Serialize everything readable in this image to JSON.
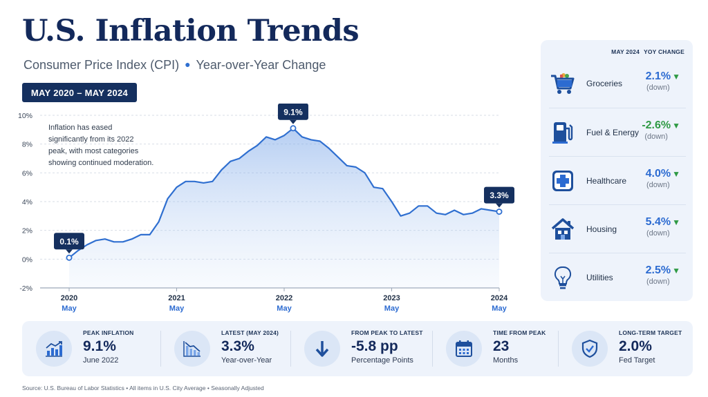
{
  "header": {
    "title": "U.S. Inflation Trends",
    "subtitle_left": "Consumer Price Index (CPI)",
    "subtitle_right": "Year-over-Year Change",
    "date_range": "MAY 2020 – MAY 2024"
  },
  "annotation": "Inflation has eased significantly from its 2022 peak, with most categories showing continued moderation.",
  "chart_data": {
    "type": "area",
    "title": "",
    "xlabel": "",
    "ylabel": "",
    "ylim": [
      -2,
      10
    ],
    "yticks": [
      "-2%",
      "0%",
      "2%",
      "4%",
      "6%",
      "8%",
      "10%"
    ],
    "ytick_values": [
      -2,
      0,
      2,
      4,
      6,
      8,
      10
    ],
    "grid": true,
    "x_ticks": [
      {
        "year": "2020",
        "month": "May",
        "t": 0
      },
      {
        "year": "2021",
        "month": "May",
        "t": 12
      },
      {
        "year": "2022",
        "month": "May",
        "t": 24
      },
      {
        "year": "2023",
        "month": "May",
        "t": 36
      },
      {
        "year": "2024",
        "month": "May",
        "t": 48
      }
    ],
    "series": [
      {
        "t": [
          0,
          1,
          2,
          3,
          4,
          5,
          6,
          7,
          8,
          9,
          10,
          11,
          12,
          13,
          14,
          15,
          16,
          17,
          18,
          19,
          20,
          21,
          22,
          23,
          24,
          25,
          26,
          27,
          28,
          29,
          30,
          31,
          32,
          33,
          34,
          35,
          36,
          37,
          38,
          39,
          40,
          41,
          42,
          43,
          44,
          45,
          46,
          47,
          48
        ],
        "values": [
          0.1,
          0.6,
          1.0,
          1.3,
          1.4,
          1.2,
          1.2,
          1.4,
          1.7,
          1.7,
          2.6,
          4.2,
          5.0,
          5.4,
          5.4,
          5.3,
          5.4,
          6.2,
          6.8,
          7.0,
          7.5,
          7.9,
          8.5,
          8.3,
          8.6,
          9.1,
          8.5,
          8.3,
          8.2,
          7.7,
          7.1,
          6.5,
          6.4,
          6.0,
          5.0,
          4.9,
          4.0,
          3.0,
          3.2,
          3.7,
          3.7,
          3.2,
          3.1,
          3.4,
          3.1,
          3.2,
          3.5,
          3.4,
          3.3
        ]
      }
    ],
    "callouts": [
      {
        "label": "0.1%",
        "t": 0,
        "value": 0.1
      },
      {
        "label": "9.1%",
        "t": 25,
        "value": 9.1
      },
      {
        "label": "3.3%",
        "t": 48,
        "value": 3.3
      }
    ]
  },
  "categories_panel": {
    "head_period": "MAY 2024",
    "head_metric": "YOY CHANGE",
    "items": [
      {
        "name": "Groceries",
        "value": "2.1%",
        "direction": "(down)",
        "icon": "shopping-cart-icon"
      },
      {
        "name": "Fuel & Energy",
        "value": "-2.6%",
        "direction": "(down)",
        "icon": "fuel-pump-icon"
      },
      {
        "name": "Healthcare",
        "value": "4.0%",
        "direction": "(down)",
        "icon": "medical-cross-icon"
      },
      {
        "name": "Housing",
        "value": "5.4%",
        "direction": "(down)",
        "icon": "house-icon"
      },
      {
        "name": "Utilities",
        "value": "2.5%",
        "direction": "(down)",
        "icon": "lightbulb-icon"
      }
    ]
  },
  "stats": [
    {
      "label": "PEAK INFLATION",
      "value": "9.1%",
      "sub": "June 2022",
      "icon": "bar-chart-up-icon"
    },
    {
      "label": "LATEST (MAY 2024)",
      "value": "3.3%",
      "sub": "Year-over-Year",
      "icon": "chart-down-icon"
    },
    {
      "label": "FROM PEAK TO LATEST",
      "value": "-5.8 pp",
      "sub": "Percentage Points",
      "icon": "arrow-down-icon"
    },
    {
      "label": "TIME FROM PEAK",
      "value": "23",
      "sub": "Months",
      "icon": "calendar-icon"
    },
    {
      "label": "LONG-TERM TARGET",
      "value": "2.0%",
      "sub": "Fed Target",
      "icon": "shield-check-icon"
    }
  ],
  "source": "Source: U.S. Bureau of Labor Statistics  •  All items in U.S. City Average  •  Seasonally Adjusted",
  "colors": {
    "accent": "#2c6bd1",
    "navy": "#13295b",
    "down_green": "#2f9a44",
    "panel_bg": "#eef3fb"
  }
}
